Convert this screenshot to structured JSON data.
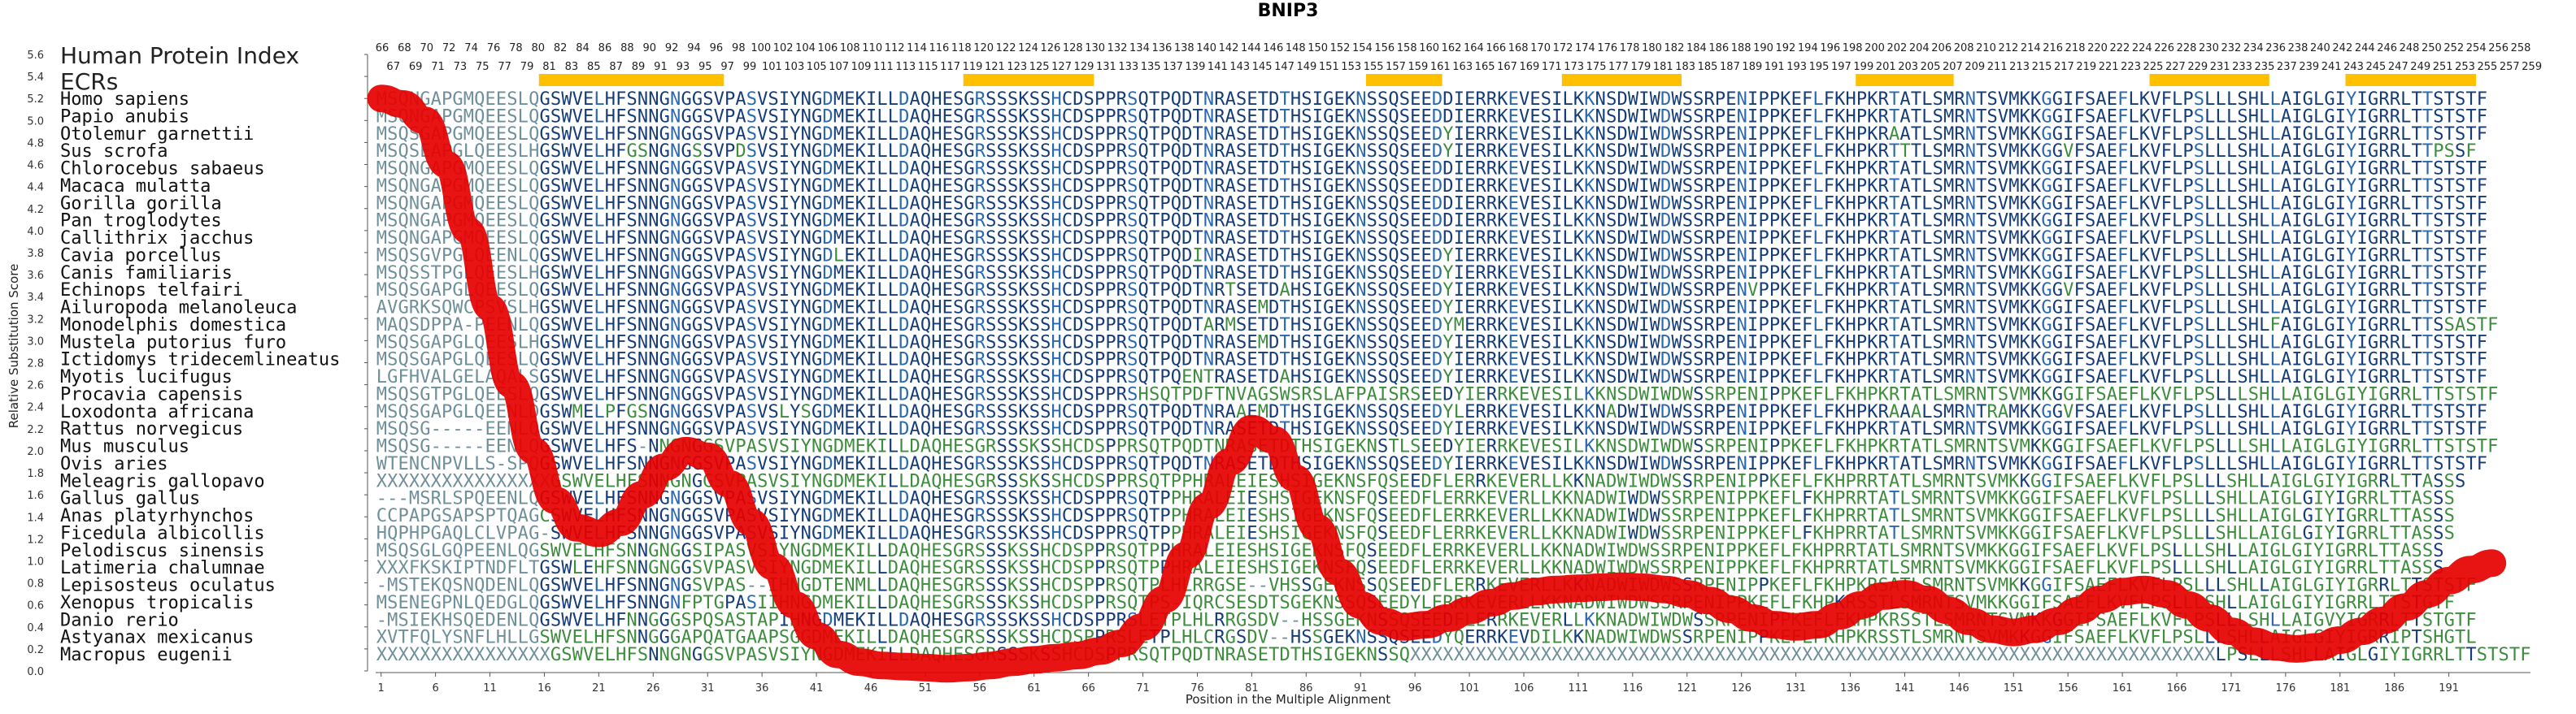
{
  "chart_data": {
    "type": "line",
    "title": "BNIP3",
    "xlabel": "Position in the Multiple Alignment",
    "ylabel": "Relative Substitution Score",
    "ylim": [
      0.0,
      5.6
    ],
    "yticks": [
      "0.0",
      "0.2",
      "0.4",
      "0.6",
      "0.8",
      "1.0",
      "1.2",
      "1.4",
      "1.6",
      "1.8",
      "2.0",
      "2.2",
      "2.4",
      "2.6",
      "2.8",
      "3.0",
      "3.2",
      "3.4",
      "3.6",
      "3.8",
      "4.0",
      "4.2",
      "4.4",
      "4.6",
      "4.8",
      "5.0",
      "5.2",
      "5.4",
      "5.6"
    ],
    "xticks": [
      "1",
      "6",
      "11",
      "16",
      "21",
      "26",
      "31",
      "36",
      "41",
      "46",
      "51",
      "56",
      "61",
      "66",
      "71",
      "76",
      "81",
      "86",
      "91",
      "96",
      "101",
      "106",
      "111",
      "116",
      "121",
      "126",
      "131",
      "136",
      "141",
      "146",
      "151",
      "156",
      "161",
      "166",
      "171",
      "176",
      "181",
      "186",
      "191"
    ],
    "header_label": "Human Protein Index",
    "ecr_label": "ECRs",
    "human_index_top": [
      "66",
      "68",
      "70",
      "72",
      "74",
      "76",
      "78",
      "80",
      "82",
      "84",
      "86",
      "88",
      "90",
      "92",
      "94",
      "96",
      "98",
      "100",
      "102",
      "104",
      "106",
      "108",
      "110",
      "112",
      "114",
      "116",
      "118",
      "120",
      "122",
      "124",
      "126",
      "128",
      "130",
      "132",
      "134",
      "136",
      "138",
      "140",
      "142",
      "144",
      "146",
      "148",
      "150",
      "152",
      "154",
      "156",
      "158",
      "160",
      "162",
      "164",
      "166",
      "168",
      "170",
      "172",
      "174",
      "176",
      "178",
      "180",
      "182",
      "184",
      "186",
      "188",
      "190",
      "192",
      "194",
      "196",
      "198",
      "200",
      "202",
      "204",
      "206",
      "208",
      "210",
      "212",
      "214",
      "216",
      "218",
      "220",
      "222",
      "224",
      "226",
      "228",
      "230",
      "232",
      "234",
      "236",
      "238",
      "240",
      "242",
      "244",
      "246",
      "248",
      "250",
      "252",
      "254",
      "256",
      "258"
    ],
    "human_index_bottom": [
      "67",
      "69",
      "71",
      "73",
      "75",
      "77",
      "79",
      "81",
      "83",
      "85",
      "87",
      "89",
      "91",
      "93",
      "95",
      "97",
      "99",
      "101",
      "103",
      "105",
      "107",
      "109",
      "111",
      "113",
      "115",
      "117",
      "119",
      "121",
      "123",
      "125",
      "127",
      "129",
      "131",
      "133",
      "135",
      "137",
      "139",
      "141",
      "143",
      "145",
      "147",
      "149",
      "151",
      "153",
      "155",
      "157",
      "159",
      "161",
      "163",
      "165",
      "167",
      "169",
      "171",
      "173",
      "175",
      "177",
      "179",
      "181",
      "183",
      "185",
      "187",
      "189",
      "191",
      "193",
      "195",
      "197",
      "199",
      "201",
      "203",
      "205",
      "207",
      "209",
      "211",
      "213",
      "215",
      "217",
      "219",
      "221",
      "223",
      "225",
      "227",
      "229",
      "231",
      "233",
      "235",
      "237",
      "239",
      "241",
      "243",
      "245",
      "247",
      "249",
      "251",
      "253",
      "255",
      "257",
      "259"
    ],
    "ecr_regions": [
      [
        16,
        32
      ],
      [
        55,
        66
      ],
      [
        92,
        98
      ],
      [
        110,
        120
      ],
      [
        137,
        145
      ],
      [
        164,
        174
      ],
      [
        182,
        193
      ]
    ],
    "species": [
      {
        "name": "Homo sapiens",
        "seq": "MSQNGAPGMQEESLQGSWVELHFSNNGNGGSVPASVSIYNGDMEKILLDAQHESGRSSSKSSHCDSPPRSQTPQDTNRASETDTHSIGEKNSSQSEEDDIERRKEVESILKKNSDWIWDWSSRPENIPPKEFLFKHPKRTATLSMRNTSVMKKGGIFSAEFLKVFLPSLLLSHLLAIGLGIYIGRRLTTSTSTF"
      },
      {
        "name": "Papio anubis",
        "seq": "MSQNGAPGMQEESLQGSWVELHFSNNGNGGSVPASVSIYNGDMEKILLDAQHESGRSSSKSSHCDSPPRSQTPQDTNRASETDTHSIGEKNSSQSEEDDIERRKEVESILKKNSDWIWDWSSRPENIPPKEFLFKHPKRTATLSMRNTSVMKKGGIFSAEFLKVFLPSLLLSHLLAIGLGIYIGRRLTTSTSTF"
      },
      {
        "name": "Otolemur garnettii",
        "seq": "MSQSGAPGMQEESLQGSWVELHFSNNGNGGSVPASVSIYNGDMEKILLDAQHESGRSSSKSSHCDSPPRSQTPQDTNRASETDTHSIGEKNSSQSEEDYIERRKEVESILKKNSDWIWDWSSRPENIPPKEFLFKHPKRAATLSMRNTSVMKKGGIFSAEFLKVFLPSLLLSHLLAIGLGIYIGRRLTTSTSTF"
      },
      {
        "name": "Sus scrofa",
        "seq": "MSQSEAPGLQEESLHGSWVELHFGSNGNGSSVPDSVSIYNGDMEKILLDAQHESGRSSSKSSHCDSPPRSQTPQDTNRASETDTHSIGEKNSSQSEEDYIERRKEVESILKKNSDWIWDWSSRPENIPPKEFLFKHPKRTTTLSMRNTSVMKKGGVFSAEFLKVFLPSLLLSHLLAIGLGIYIGRRLTTPSSF"
      },
      {
        "name": "Chlorocebus sabaeus",
        "seq": "MSQNGAPGMQEESLQGSWVELHFSNNGNGGSVPASVSIYNGDMEKILLDAQHESGRSSSKSSHCDSPPRSQTPQDTNRASETDTHSIGEKNSSQSEEDDIERRKEVESILKKNSDWIWDWSSRPENIPPKEFLFKHPKRTATLSMRNTSVMKKGGIFSAEFLKVFLPSLLLSHLLAIGLGIYIGRRLTTSTSTF"
      },
      {
        "name": "Macaca mulatta",
        "seq": "MSQNGAPGMQEESLQGSWVELHFSNNGNGGSVPASVSIYNGDMEKILLDAQHESGRSSSKSSHCDSPPRSQTPQDTNRASETDTHSIGEKNSSQSEEDDIERRKEVESILKKNSDWIWDWSSRPENIPPKEFLFKHPKRTATLSMRNTSVMKKGGIFSAEFLKVFLPSLLLSHLLAIGLGIYIGRRLTTSTSTF"
      },
      {
        "name": "Gorilla gorilla",
        "seq": "MSQNGAPGMQEESLQGSWVELHFSNNGNGGSVPASVSIYNGDMEKILLDAQHESGRSSSKSSHCDSPPRSQTPQDTNRASETDTHSIGEKNSSQSEEDDIERRKEVESILKKNSDWIWDWSSRPENIPPKEFLFKHPKRTATLSMRNTSVMKKGGIFSAEFLKVFLPSLLLSHLLAIGLGIYIGRRLTTSTSTF"
      },
      {
        "name": "Pan troglodytes",
        "seq": "MSQNGAPGMQEESLQGSWVELHFSNNGNGGSVPASVSIYNGDMEKILLDAQHESGRSSSKSSHCDSPPRSQTPQDTNRASETDTHSIGEKNSSQSEEDDIERRKEVESILKKNSDWIWDWSSRPENIPPKEFLFKHPKRTATLSMRNTSVMKKGGIFSAEFLKVFLPSLLLSHLLAIGLGIYIGRRLTTSTSTF"
      },
      {
        "name": "Callithrix jacchus",
        "seq": "MSQNGAPGMQEESLQGSWVELHFSNNGNGGSVPASVSIYNGDMEKILLDAQHESGRSSSKSSHCDSPPRSQTPQDTNRASETDTHSIGEKNSSQSEEDDIERRKEVESILKKNSDWIWDWSSRPENIPPKEFLFKHPKRTATLSMRNTSVMKKGGIFSAEFLKVFLPSLLLSHLLAIGLGIYIGRRLTTSTSTF"
      },
      {
        "name": "Cavia porcellus",
        "seq": "MSQSGVPGLQEENLQGSWVELHFSNNGNGGSVPASVSIYNGDLEKILLDAQHESGRSSSKSSHCDSPPRSQTPQDINRASETDTHSIGEKNSSQSEEDYIERRKEVESILKKNSDWIWDWSSRPENIPPKEFLFKHPKRTATLSMRNTSVMKKGGIFSAEFLKVFLPSLLLSHLLAIGLGIYIGRRLTTSTSTF"
      },
      {
        "name": "Canis familiaris",
        "seq": "MSQSSTPGLQEESLHGSWVELHFSNNGNGGSVPASVSIYNGDMEKILLDAQHESGRSSSKSSHCDSPPRSQTPQDTNRASETDTHSIGEKNSSQSEEDYIERRKEVESILKKNSDWIWDWSSRPENIPPKEFLFKHPKRTATLSMRNTSVMKKGGIFSAEFLKVFLPSLLLSHLLAIGLGIYIGRRLTTSTSTF"
      },
      {
        "name": "Echinops telfairi",
        "seq": "MSQSGAPGLQEESLQGSWVELHFSNNGNGGSVPASVSIYNGDMEKILLDAQHESGRSSSKSSHCDSPPRSQTPQDTNRTSETDAHSIGEKNSSQSEEDYIERRKEVESILKKNSDWIWDWSSRPENVPPKEFLFKHPKRTATLSMRNTSVMKKGGVFSAEFLKVFLPSLLLSHLLAIGLGIYIGRRLTTSTSTF"
      },
      {
        "name": "Ailuropoda melanoleuca",
        "seq": "AVGRKSQWCPSVSLHGSWVELHFSNNGNGGSVPASVSIYNGDMEKILLDAQHESGRSSSKSSHCDSPPRSQTPQDTNRASEMDTHSIGEKNSSQSEEDYIERRKEVESILKKNSDWIWDWSSRPENIPPKEFLFKHPKRTATLSMRNTSVMKKGGIFSAEFLKVFLPSLLLSHLLAIGLGIYIGRRLTTSTSTF"
      },
      {
        "name": "Monodelphis domestica",
        "seq": "MAQSDPPA-PEENLQGSWVELHFSNNGNGGSVPASVSIYNGDMEKILLDAQHESGRSSSKSSHCDSPPRSQTPQDTARMSETDTHSIGEKNSSQSEEDYMERRKEVESILKKNSDWIWDWSSRPENIPPKEFLFKHPKRTATLSMRNTSVMKKGGIFSAEFLKVFLPSLLLSHLFAIGLGIYIGRRLTTSSASTF"
      },
      {
        "name": "Mustela putorius furo",
        "seq": "MSQSGAPGLQEESLHGSWVELHFSNNGNGGSVPASVSIYNGDMEKILLDAQHESGRSSSKSSHCDSPPRSQTPQDTNRASEMDTHSIGEKNSSQSEEDYIERRKEVESILKKNSDWIWDWSSRPENIPPKEFLFKHPKRTATLSMRNTSVMKKGGIFSAEFLKVFLPSLLLSHLLAIGLGIYIGRRLTTSTSTF"
      },
      {
        "name": "Ictidomys tridecemlineatus",
        "seq": "MSQSGAPGLQEESLQGSWVELHFSNNGNGGSVPASVSIYNGDMEKILLDAQHESGRSSSKSSHCDSPPRSQTPQDTNRASETDTHSIGEKNSSQSEEDYIERRKEVESILKKNSDWIWDWSSRPENIPPKEFLFKHPKRTATLSMRNTSVMKKGGIFSAEFLKVFLPSLLLSHLLAIGLGIYIGRRLTTSTSTF"
      },
      {
        "name": "Myotis lucifugus",
        "seq": "LGFHVALGELAQALSGSWVELHFSNNGNGGSVPASVSIYNGDMEKILLDAQHESGRSSSKSSHCDSPPRSQTPQENTRASETDAHSIGEKNSSQSEEDYIERRKEVESILKKNSDWIWDWSSRPENIPPKEFLFKHPKRTATLSMRNTSVMKKGGIFSAEFLKVFLPSLLLSHLLAIGLGIYIGRRLTTSTSTF"
      },
      {
        "name": "Procavia capensis",
        "seq": "MSQSGTPGLQEESLQGSWVELHFSNNGNGGSVPASVSIYNGDMEKILLDAQHESGRSSSKSSHCDSPPRSHSQTPDFTNVAGSWSRSLAFPAISRSEEDYIERRKEVESILKKNSDWIWDWSSRPENIPPKEFLFKHPKRTATLSMRNTSVMKKGGIFSAEFLKVFLPSLLLSHLLAIGLGIYIGRRLTTSTSTF"
      },
      {
        "name": "Loxodonta africana",
        "seq": "MSQSGAPGLQEENLDGSWMELPFGSNGNGGSVPASVSLYSGDMEKILLDAQHESGRSSSKSSHCDSPPRSQTPQDTNRAAEMDTHSIGEKNSSQSEEDYLERRKEVESILKKNADWIWDWSSRPENIPPKEFLFKHPKRAAALSMRNTRAMKKGGVFSAEFLKVFLPSLLLSHLLAIGLGIYIGRRLTTSTSTF"
      },
      {
        "name": "Rattus norvegicus",
        "seq": "MSQSG-----EENLQGSWVELHFSNNGNGGSVPASVSIYNGDMEKILLDAQHESGRSSSKSSHCDSPPRSQTPQDTNRASETDTHSIGEKNSSQSEEDYIERRKEVESILKKNSDWIWDWSSRPENIPPKEFLFKHPKRTATLSMRNTSVMKKGGIFSAEFLKVFLPSLLLSHLLAIGLGIYIGRRLTTSTSTF"
      },
      {
        "name": "Mus musculus",
        "seq": "MSQSG-----EENLQGSWVELHFS-NNGNGGSVPASVSIYNGDMEKILLDAQHESGRSSSKSSHCDSPPRSQTPQDTNRASETDTHSIGEKNSTLSEEDYIERRKEVESILKKNSDWIWDWSSRPENIPPKEFLFKHPKRTATLSMRNTSVMKKGGIFSAEFLKVFLPSLLLSHLLAIGLGIYIGRRLTTSTSTF"
      },
      {
        "name": "Ovis aries",
        "seq": "WTENCNPVLLS-SPQGSWVELHFSNNGNGGSVPASVSIYNGDMEKILLDAQHESGRSSSKSSHCDSPPRSQTPQDTNRASETDTHSIGEKNSSQSEEDYIERRKEVESILKKNSDWIWDWSSRPENIPPKEFLFKHPKRTATLSMRNTSVMKKGGIFSAEFLKVFLPSLLLSHLLAIGLGIYIGRRLTTSTSTF"
      },
      {
        "name": "Meleagris gallopavo",
        "seq": "XXXXXXXXXXXXXXXXGSWVELHFSNNGNGGSVPASVSIYNGDMEKILLDAQHESGRSSSKSSHCDSPPRSQTPPHRALEIESHSIGEKNSFQSEEDFLERRKEVERLLKKNADWIWDWSSRPENIPPKEFLFKHPRRTATLSMRNTSVMKKGGIFSAEFLKVFLPSLLLSHLLAIGLGIYIGRRLTTASSS"
      },
      {
        "name": "Gallus gallus",
        "seq": "---MSRLSPQEENLQGSWVELHFSNNGNGGSVPASVSIYNGDMEKILLDAQHESGRSSSKSSHCDSPPRSQTPPHRALEIESHSIGEKNSFQSEEDFLERRKEVERLLKKNADWIWDWSSRPENIPPKEFLFKHPRRTATLSMRNTSVMKKGGIFSAEFLKVFLPSLLLSHLLAIGLGIYIGRRLTTASSS"
      },
      {
        "name": "Anas platyrhynchos",
        "seq": "CCPAPGSAPSPTQAGCSWVELHFSNNGNGGSVPASVSIYNGDMEKILLDAQHESGRSSSKSSHCDSPPRSQTPPHRALEIESHSIGEKNSFQSEEDFLERRKEVERLLKKNADWIWDWSSRPENIPPKEFLFKHPRRTATLSMRNTSVMKKGGIFSAEFLKVFLPSLLLSHLLAIGLGIYIGRRLTTASSS"
      },
      {
        "name": "Ficedula albicollis",
        "seq": "HQPHPGAQLCLVPAG-SWVELHFSNNGNGGSVPASVSIYNGDMEKILLDAQHESGRSSSKSSHCDSPPRSQTPPHRALEIESHSIGEKNSFQSEEDFLERRKEVERLLKKNADWIWDWSSRPENIPPKEFLFKHPRRTATLSMRNTSVMKKGGIFSAEFLKVFLPSLLLSHLLAIGLGIYIGRRLTTASSS"
      },
      {
        "name": "Pelodiscus sinensis",
        "seq": "MSQSGLGQPEENLQGSWVELHFSNNGNGGSIPASVSIYNGDMEKILLDAQHESGRSSSKSSHCDSPPRSQTPPHRALEIESHSIGEKNSFQSEEDFLERRKEVERLLKKNADWIWDWSSRPENIPPKEFLFKHPRRTATLSMRNTSVMKKGGIFSAEFLKVFLPSLLLSHLLAIGLGIYIGRRLTTASSS"
      },
      {
        "name": "Latimeria chalumnae",
        "seq": "XXXFKSKIPTNDFLTGSWLEHFSNNGNGGSVPASVSIYNGDMEKILLDAQHESGRSSSKSSHCDSPPRSQTPPHRALEIESHSIGEKNSFQSEEDFLERRKEVERLLKKNADWIWDWSSRPENIPPKEFLFKHPRRTATLSMRNTSVMKKGGIFSAEFLKVFLPSLLLSHLLAIGLGIYIGRRLTTASSS"
      },
      {
        "name": "Lepisosteus oculatus",
        "seq": "-MSTEKQSNQDENLQGSWVELHFSNNGNGSVPAS--IHNGDTENMLLDAQHESGRSSSKSSHCDSPPRSQTPLHLRRGSE--VHSSGEKNSSQSEEDFLERRKEVERLLKKNADWIWDWSSRPENIPPKEFLFKHPKRSATLSMRNTSVMKKGGIFSAEFLKVFLPSLLLSHLLAIGLGIYIGRRLTTSTSTF"
      },
      {
        "name": "Xenopus tropicalis",
        "seq": "MSENEGPNLQEDGLQGSWVELHFSNNGNFPTGPASIIHNGDMEKILLDAQHESGRSSSKSSHCDSPPRSQTPS-IQRCSESDTSGEKNSSQSEEDYLERRKEVERLLKKNADWIWDWSSRPENIPPKEFLFKHPKRSSTLSMRNTSVMKKGGIFSAEFLKVFLPSLLLSHLLAIGLGIYIGRRLTTSTGTF"
      },
      {
        "name": "Danio rerio",
        "seq": "-MSIEKHSQEDENLQGSWVELHFNNGGGSPQSASTAPIHNGDMEKILLDAQHESGRSSSKSSHCDSPPRSLETPLHLRRGSDV--HSSGEKNSSQSEEDFLERRKEVERLLKKNADWIWDWSSRPENIPPKEFLFKHPKRSSTLSMRNTSVMKKGGIFSAEFLKVFLPSLLLSHLLAIGVYIGRRLTTSTGTF"
      },
      {
        "name": "Astyanax mexicanus",
        "seq": "XVTFQLYSNFLHLLGSWVELHFSNNGGGAPQATGAAPSGGDMEKILLDAQHESGRSSSKSSHCDSPPRSLETPLHLCRGSDV--HSSGEKNSSQSEEDYQERRKEVDILKKNADWIWDWSSRPENIPPKEFLFKHPKRSSTLSMRNTSVMKKGGIFSAEFLKVFLPSLLLSHLLAIGLGIYIGRRIPTSHGTL"
      },
      {
        "name": "Macropus eugenii",
        "seq": "XXXXXXXXXXXXXXXXGSWVELHFSNNGNGGSVPASVSIYNGDMEKILLDAQHESGRSSSKSSHCDSPPRSQTPQDTNRASETDTHSIGEKNSSQXXXXXXXXXXXXXXXXXXXXXXXXXXXXXXXXXXXXXXXXXXXXXXXXXXXXXXXXXXXXXXXXXXXXXXXXXXLPSLLLSHLLAIGLGIYIGRRLTTSTSTF"
      }
    ],
    "series": [
      {
        "x": [
          1,
          3,
          5,
          7,
          9,
          11,
          13,
          15,
          17,
          19,
          21,
          23,
          25,
          27,
          29,
          31,
          33,
          35,
          37,
          39,
          41,
          43,
          45,
          47,
          49,
          51,
          53,
          55,
          57,
          59,
          61,
          63,
          65,
          67,
          69,
          71,
          73,
          75,
          77,
          79,
          81,
          83,
          85,
          87,
          89,
          91,
          93,
          95,
          97,
          99,
          101,
          103,
          105,
          107,
          109,
          111,
          113,
          115,
          117,
          119,
          121,
          123,
          125,
          127,
          129,
          131,
          133,
          135,
          137,
          139,
          141,
          143,
          145,
          147,
          149,
          151,
          153,
          155,
          157,
          159,
          161,
          163,
          165,
          167,
          169,
          171,
          173,
          175,
          177,
          179,
          181,
          183,
          185,
          187,
          189,
          191,
          193,
          195
        ],
        "y": [
          5.2,
          5.15,
          5.0,
          4.6,
          4.0,
          3.3,
          2.6,
          2.0,
          1.55,
          1.3,
          1.25,
          1.35,
          1.6,
          1.85,
          2.0,
          1.95,
          1.7,
          1.35,
          0.95,
          0.6,
          0.32,
          0.15,
          0.08,
          0.05,
          0.04,
          0.03,
          0.02,
          0.03,
          0.05,
          0.08,
          0.1,
          0.12,
          0.14,
          0.18,
          0.25,
          0.4,
          0.65,
          1.05,
          1.5,
          1.9,
          2.2,
          2.1,
          1.75,
          1.3,
          0.9,
          0.6,
          0.45,
          0.4,
          0.42,
          0.48,
          0.55,
          0.62,
          0.68,
          0.72,
          0.74,
          0.75,
          0.76,
          0.77,
          0.76,
          0.74,
          0.7,
          0.64,
          0.56,
          0.48,
          0.42,
          0.4,
          0.42,
          0.5,
          0.6,
          0.68,
          0.7,
          0.65,
          0.55,
          0.45,
          0.38,
          0.35,
          0.38,
          0.45,
          0.55,
          0.65,
          0.72,
          0.74,
          0.7,
          0.6,
          0.48,
          0.36,
          0.27,
          0.22,
          0.2,
          0.22,
          0.28,
          0.36,
          0.46,
          0.58,
          0.7,
          0.82,
          0.92,
          0.98
        ]
      }
    ]
  }
}
